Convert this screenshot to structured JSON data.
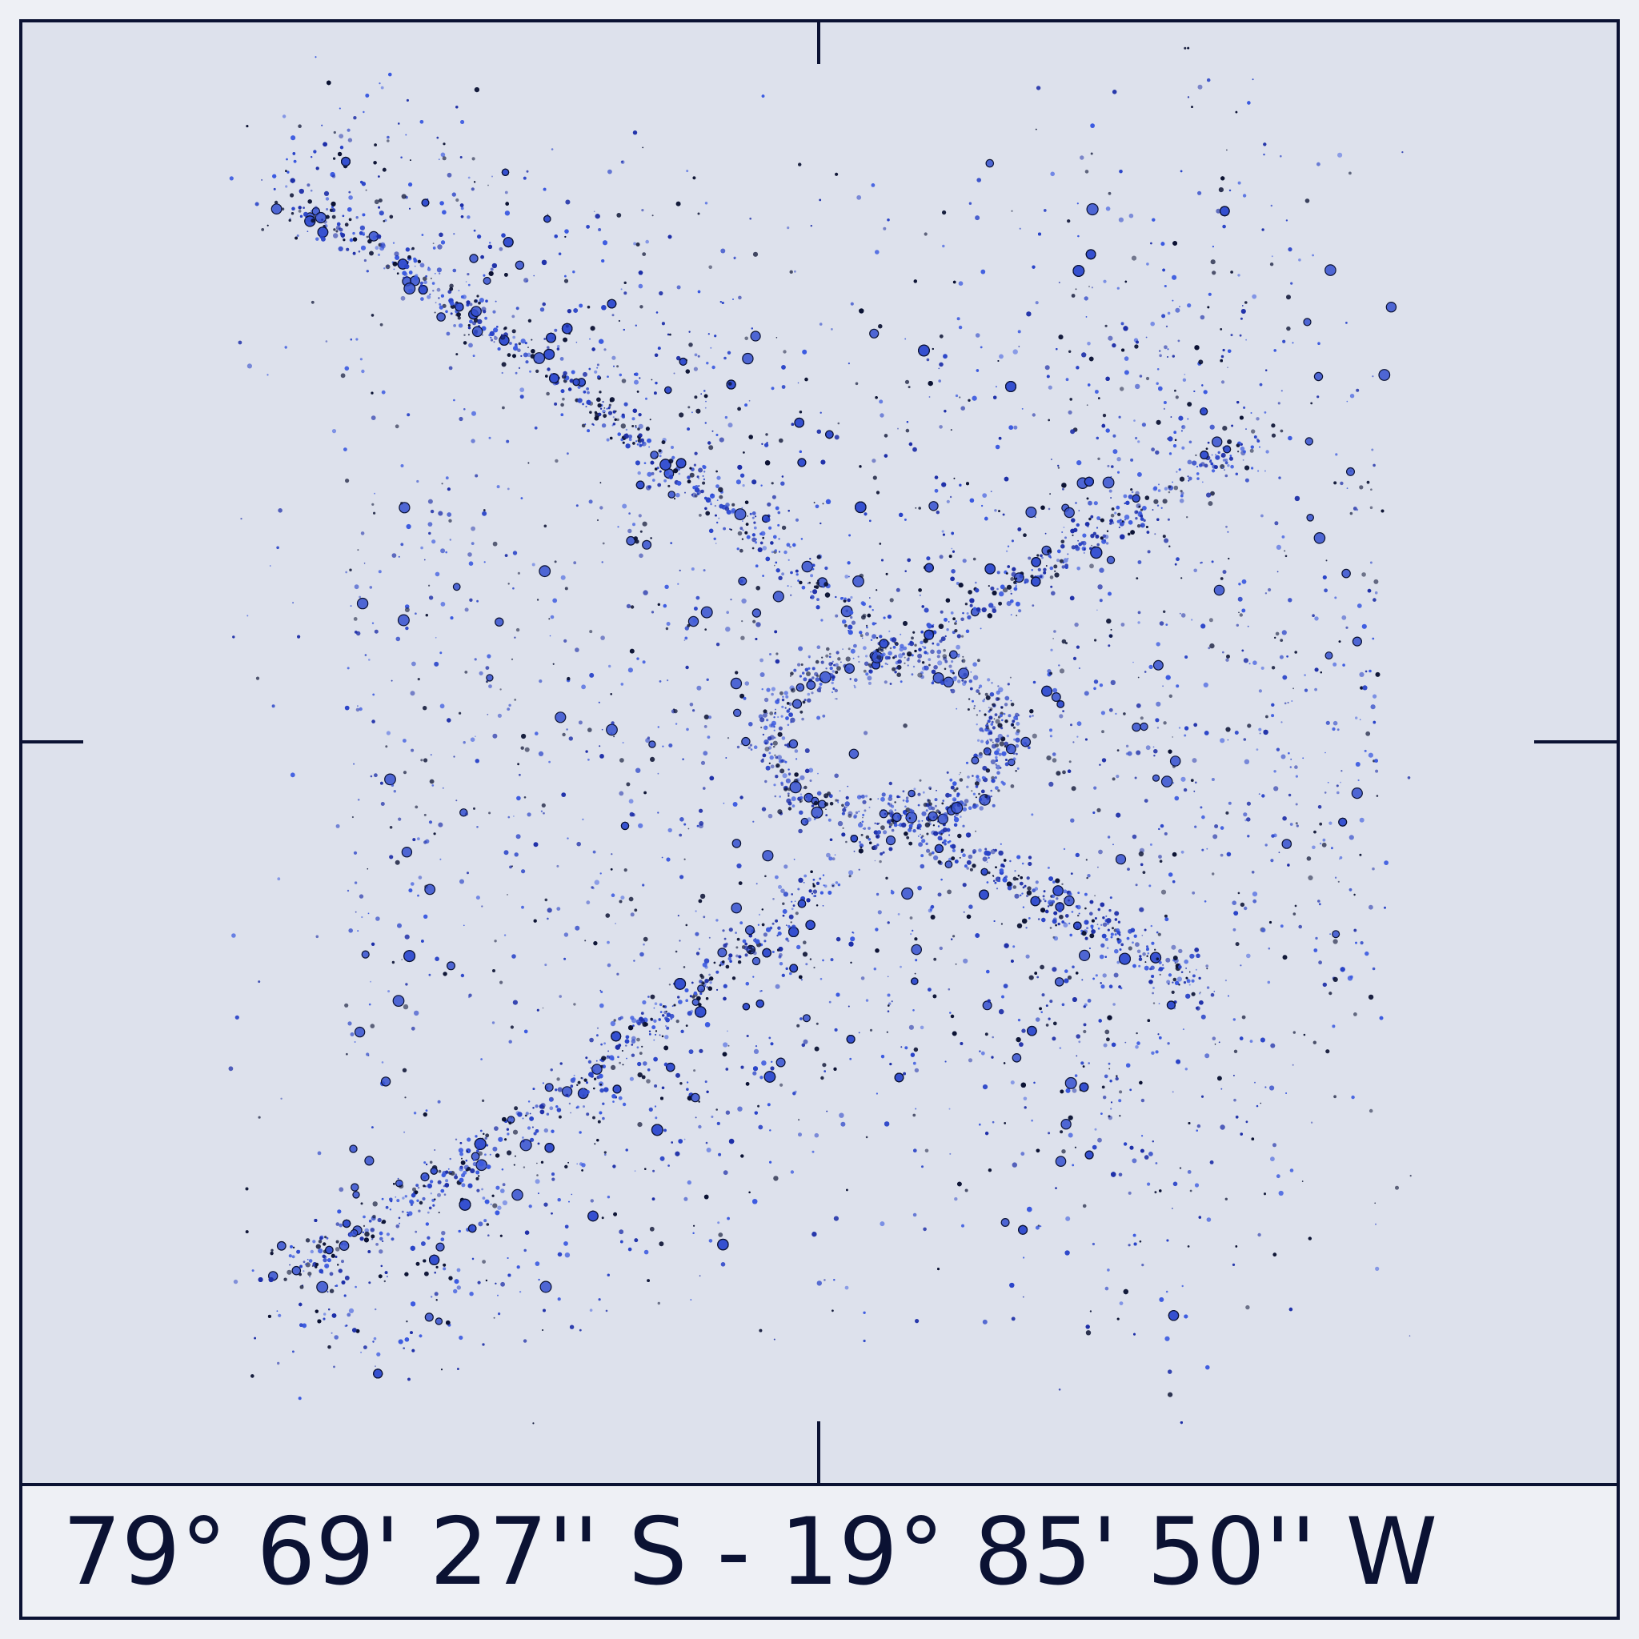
{
  "caption": "79° 69' 27'' S - 19° 85' 50'' W"
}
